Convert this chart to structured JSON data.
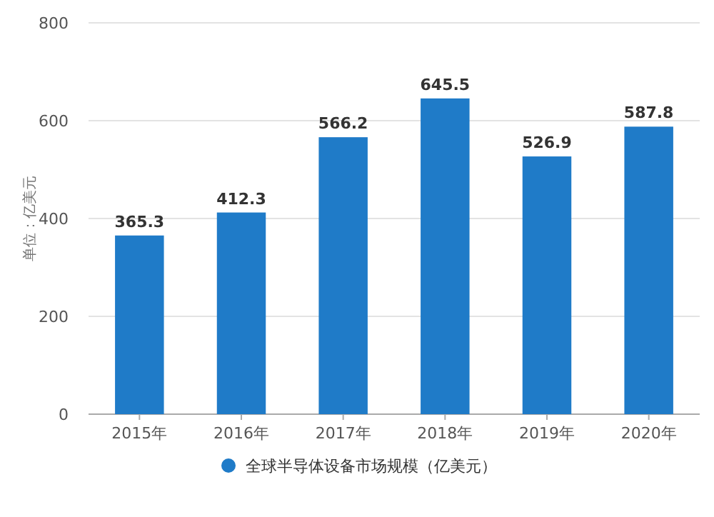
{
  "chart_data": {
    "type": "bar",
    "ylabel": "单位：亿美元",
    "categories": [
      "2015年",
      "2016年",
      "2017年",
      "2018年",
      "2019年",
      "2020年"
    ],
    "series": [
      {
        "name": "全球半导体设备市场规模（亿美元）",
        "color": "#1f7bc8",
        "values": [
          365.3,
          412.3,
          566.2,
          645.5,
          526.9,
          587.8
        ]
      }
    ],
    "ylim": [
      0,
      800
    ],
    "yticks": [
      0,
      200,
      400,
      600,
      800
    ],
    "grid": "y",
    "legend": "bottom",
    "data_labels": true
  }
}
